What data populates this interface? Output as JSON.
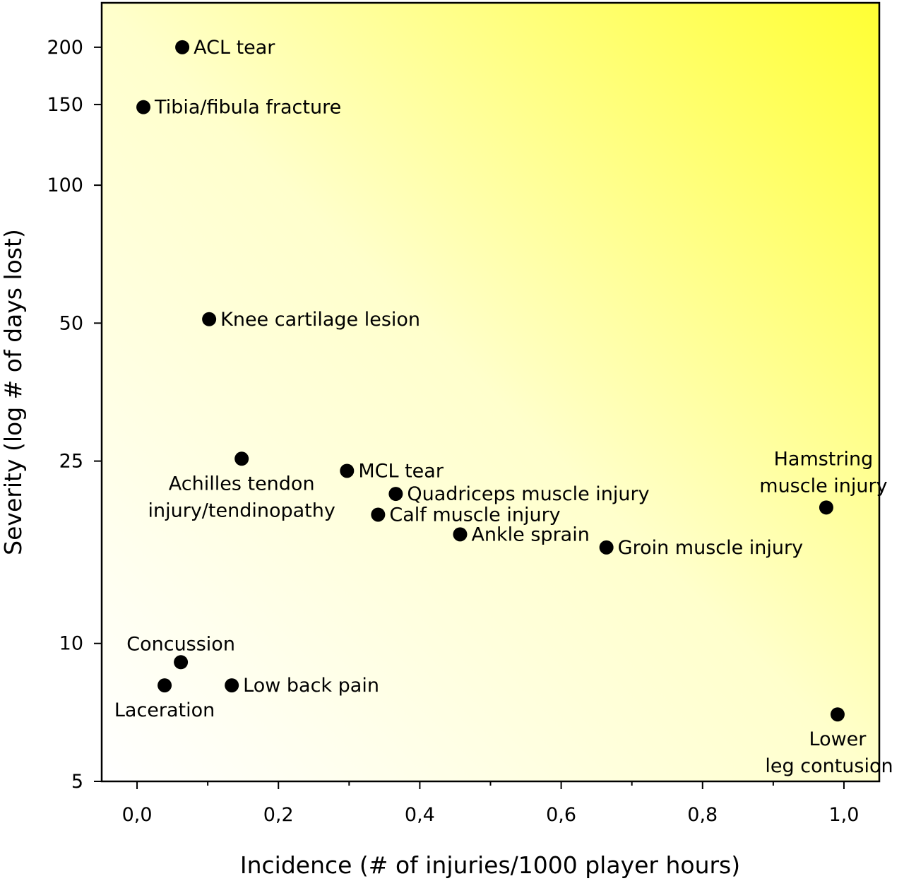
{
  "chart_data": {
    "type": "scatter",
    "xlabel": "Incidence (# of injuries/1000 player hours)",
    "ylabel": "Severity (log # of days lost)",
    "xlim": [
      -0.05,
      1.05
    ],
    "ylim": [
      5,
      250
    ],
    "y_scale": "log",
    "x_ticks": [
      0.0,
      0.2,
      0.4,
      0.6,
      0.8,
      1.0
    ],
    "x_tick_labels": [
      "0,0",
      "0,2",
      "0,4",
      "0,6",
      "0,8",
      "1,0"
    ],
    "y_ticks": [
      5,
      10,
      25,
      50,
      100,
      150,
      200
    ],
    "y_tick_labels": [
      "5",
      "10",
      "25",
      "50",
      "100",
      "150",
      "200"
    ],
    "background_gradient": {
      "from": "#ffffff",
      "to": "#ffff33",
      "direction": "bottom-left to top-right"
    },
    "point_color": "#000000",
    "points": [
      {
        "x": 0.064,
        "y": 200,
        "label": [
          "ACL tear"
        ],
        "label_pos": "right"
      },
      {
        "x": 0.009,
        "y": 148,
        "label": [
          "Tibia/fibula fracture"
        ],
        "label_pos": "right"
      },
      {
        "x": 0.102,
        "y": 51,
        "label": [
          "Knee cartilage lesion"
        ],
        "label_pos": "right"
      },
      {
        "x": 0.148,
        "y": 25.3,
        "label": [
          "Achilles tendon",
          "injury/tendinopathy"
        ],
        "label_pos": "below"
      },
      {
        "x": 0.297,
        "y": 23.8,
        "label": [
          "MCL tear"
        ],
        "label_pos": "right"
      },
      {
        "x": 0.366,
        "y": 21.2,
        "label": [
          "Quadriceps muscle injury"
        ],
        "label_pos": "right"
      },
      {
        "x": 0.341,
        "y": 19.1,
        "label": [
          "Calf muscle injury"
        ],
        "label_pos": "right"
      },
      {
        "x": 0.457,
        "y": 17.3,
        "label": [
          "Ankle sprain"
        ],
        "label_pos": "right"
      },
      {
        "x": 0.664,
        "y": 16.2,
        "label": [
          "Groin muscle injury"
        ],
        "label_pos": "right"
      },
      {
        "x": 0.975,
        "y": 19.8,
        "label": [
          "Hamstring",
          "muscle injury"
        ],
        "label_pos": "above"
      },
      {
        "x": 0.062,
        "y": 9.1,
        "label": [
          "Concussion"
        ],
        "label_pos": "above"
      },
      {
        "x": 0.039,
        "y": 8.1,
        "label": [
          "Laceration"
        ],
        "label_pos": "below"
      },
      {
        "x": 0.134,
        "y": 8.1,
        "label": [
          "Low back pain"
        ],
        "label_pos": "right"
      },
      {
        "x": 0.991,
        "y": 7.0,
        "label": [
          "Lower",
          "leg contusion"
        ],
        "label_pos": "below"
      }
    ]
  }
}
